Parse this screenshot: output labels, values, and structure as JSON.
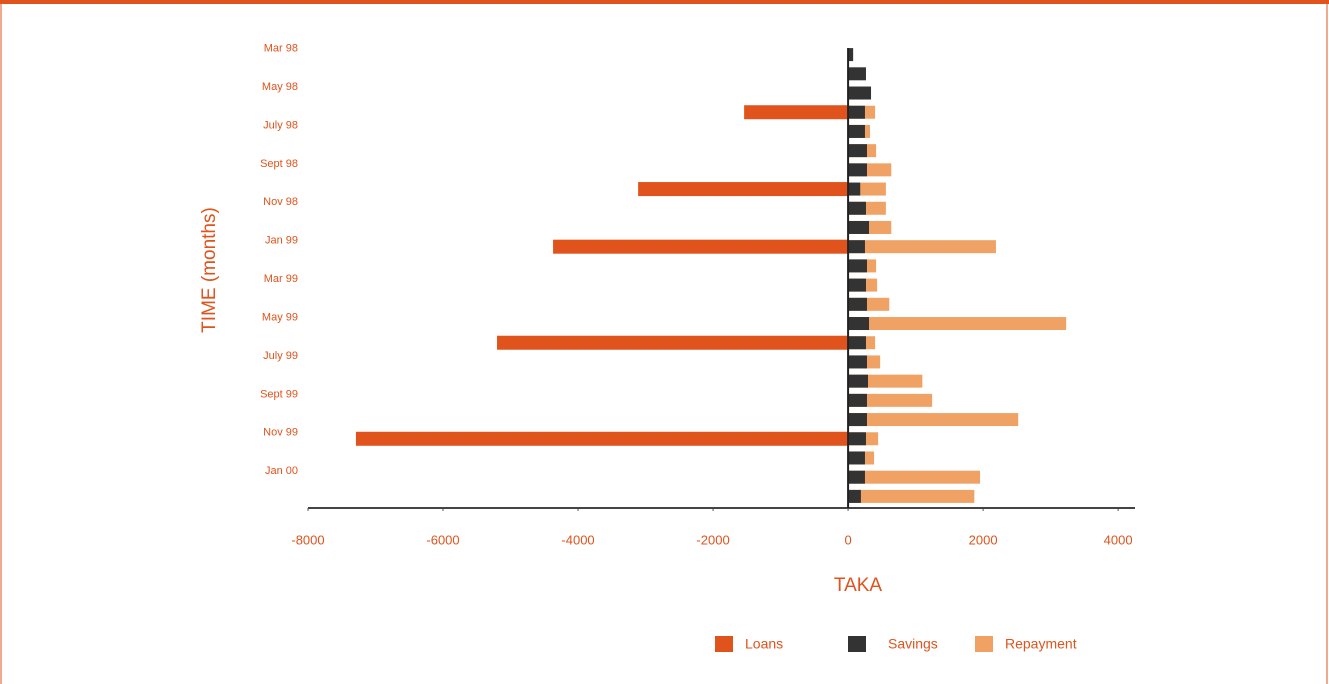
{
  "chart_data": {
    "type": "bar",
    "orientation": "horizontal",
    "xlabel": "TAKA",
    "ylabel": "TIME (months)",
    "categories": [
      "Mar 98",
      null,
      "May 98",
      null,
      "July 98",
      null,
      "Sept 98",
      null,
      "Nov 98",
      null,
      "Jan 99",
      null,
      "Mar 99",
      null,
      "May 99",
      null,
      "July 99",
      null,
      "Sept 99",
      null,
      "Nov 99",
      null,
      "Jan 00",
      null
    ],
    "series": [
      {
        "name": "Loans",
        "color": "#e0531c",
        "values": [
          null,
          null,
          null,
          -1540,
          null,
          null,
          null,
          -3110,
          null,
          null,
          -4370,
          null,
          null,
          null,
          null,
          -5200,
          null,
          null,
          null,
          null,
          -7290,
          null,
          null,
          null
        ]
      },
      {
        "name": "Savings",
        "color": "#333333",
        "values": [
          75,
          265,
          340,
          250,
          250,
          280,
          280,
          180,
          265,
          310,
          250,
          280,
          265,
          280,
          310,
          265,
          280,
          295,
          280,
          280,
          265,
          250,
          250,
          190
        ]
      },
      {
        "name": "Repayment",
        "color": "#f0a264",
        "values": [
          null,
          null,
          null,
          400,
          325,
          415,
          640,
          560,
          560,
          640,
          2190,
          415,
          430,
          610,
          3230,
          400,
          475,
          1100,
          1245,
          2520,
          445,
          385,
          1955,
          1870
        ]
      }
    ],
    "xlim": [
      -8000,
      4250
    ],
    "xticks": [
      -8000,
      -6000,
      -4000,
      -2000,
      0,
      2000,
      4000
    ]
  }
}
